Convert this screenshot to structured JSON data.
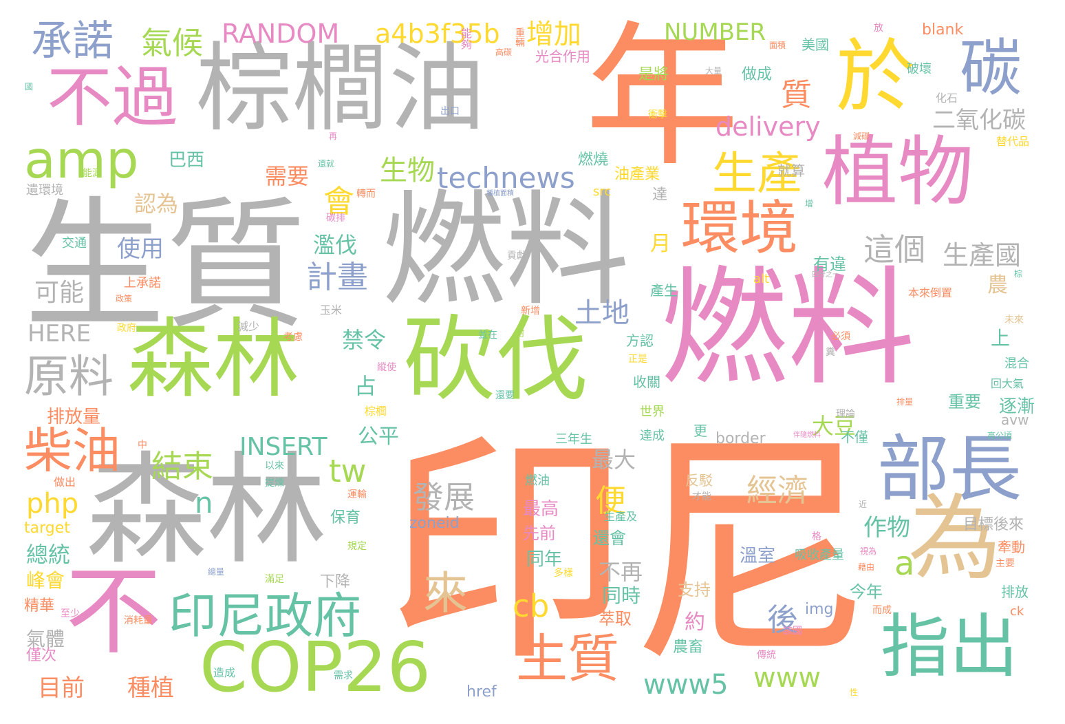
{
  "palette": {
    "orange": "#fc8d62",
    "gray": "#b3b3b3",
    "pink": "#e78ac3",
    "green": "#a6d854",
    "teal": "#66c2a5",
    "blue": "#8da0cb",
    "yellow": "#ffd92f",
    "tan": "#e5c494"
  },
  "words": [
    {
      "text": "印尼",
      "color": "orange"
    },
    {
      "text": "生質",
      "color": "gray"
    },
    {
      "text": "燃料",
      "color": "gray"
    },
    {
      "text": "燃料",
      "color": "pink"
    },
    {
      "text": "棕櫚油",
      "color": "gray"
    },
    {
      "text": "年",
      "color": "orange"
    },
    {
      "text": "森林",
      "color": "gray"
    },
    {
      "text": "森林",
      "color": "green"
    },
    {
      "text": "砍伐",
      "color": "green"
    },
    {
      "text": "植物",
      "color": "pink"
    },
    {
      "text": "於",
      "color": "yellow"
    },
    {
      "text": "為",
      "color": "tan"
    },
    {
      "text": "不過",
      "color": "pink"
    },
    {
      "text": "不",
      "color": "pink"
    },
    {
      "text": "部長",
      "color": "blue"
    },
    {
      "text": "指出",
      "color": "teal"
    },
    {
      "text": "COP26",
      "color": "green"
    },
    {
      "text": "碳",
      "color": "blue"
    },
    {
      "text": "amp",
      "color": "green"
    },
    {
      "text": "環境",
      "color": "orange"
    },
    {
      "text": "印尼政府",
      "color": "teal"
    },
    {
      "text": "生質",
      "color": "orange"
    },
    {
      "text": "柴油",
      "color": "orange"
    },
    {
      "text": "原料",
      "color": "gray"
    },
    {
      "text": "承諾",
      "color": "blue"
    },
    {
      "text": "生產",
      "color": "yellow"
    },
    {
      "text": "來",
      "color": "tan"
    },
    {
      "text": "technews",
      "color": "blue"
    },
    {
      "text": "RANDOM",
      "color": "pink"
    },
    {
      "text": "a4b3f35b",
      "color": "yellow"
    },
    {
      "text": "氣候",
      "color": "green"
    },
    {
      "text": "增加",
      "color": "yellow"
    },
    {
      "text": "NUMBER",
      "color": "green"
    },
    {
      "text": "質",
      "color": "orange"
    },
    {
      "text": "delivery",
      "color": "pink"
    },
    {
      "text": "二氧化碳",
      "color": "gray"
    },
    {
      "text": "經濟",
      "color": "tan"
    },
    {
      "text": "發展",
      "color": "gray"
    },
    {
      "text": "這個",
      "color": "gray"
    },
    {
      "text": "生產國",
      "color": "gray"
    },
    {
      "text": "結束",
      "color": "green"
    },
    {
      "text": "計畫",
      "color": "blue"
    },
    {
      "text": "INSERT",
      "color": "teal"
    },
    {
      "text": "www5",
      "color": "teal"
    },
    {
      "text": "www",
      "color": "green"
    },
    {
      "text": "php",
      "color": "yellow"
    },
    {
      "text": "tw",
      "color": "green"
    },
    {
      "text": "a",
      "color": "green"
    },
    {
      "text": "n",
      "color": "teal"
    },
    {
      "text": "cb",
      "color": "yellow"
    },
    {
      "text": "後",
      "color": "blue"
    },
    {
      "text": "便",
      "color": "yellow"
    },
    {
      "text": "會",
      "color": "yellow"
    },
    {
      "text": "生物",
      "color": "green"
    },
    {
      "text": "土地",
      "color": "blue"
    },
    {
      "text": "使用",
      "color": "blue"
    },
    {
      "text": "可能",
      "color": "gray"
    },
    {
      "text": "HERE",
      "color": "gray"
    },
    {
      "text": "巴西",
      "color": "teal"
    },
    {
      "text": "認為",
      "color": "tan"
    },
    {
      "text": "需要",
      "color": "orange"
    },
    {
      "text": "濫伐",
      "color": "teal"
    },
    {
      "text": "禁令",
      "color": "teal"
    },
    {
      "text": "占",
      "color": "teal"
    },
    {
      "text": "公平",
      "color": "teal"
    },
    {
      "text": "大豆",
      "color": "green"
    },
    {
      "text": "最大",
      "color": "gray"
    },
    {
      "text": "總統",
      "color": "teal"
    },
    {
      "text": "峰會",
      "color": "yellow"
    },
    {
      "text": "目前",
      "color": "orange"
    },
    {
      "text": "種植",
      "color": "orange"
    },
    {
      "text": "作物",
      "color": "teal"
    },
    {
      "text": "不再",
      "color": "gray"
    },
    {
      "text": "同時",
      "color": "teal"
    },
    {
      "text": "溫室",
      "color": "blue"
    },
    {
      "text": "約",
      "color": "pink"
    },
    {
      "text": "月",
      "color": "yellow"
    },
    {
      "text": "有違",
      "color": "teal"
    },
    {
      "text": "農",
      "color": "tan"
    },
    {
      "text": "上",
      "color": "teal"
    },
    {
      "text": "逐漸",
      "color": "teal"
    },
    {
      "text": "重要",
      "color": "teal"
    },
    {
      "text": "今年",
      "color": "teal"
    },
    {
      "text": "排放量",
      "color": "orange"
    },
    {
      "text": "燃燒",
      "color": "teal"
    },
    {
      "text": "做成",
      "color": "teal"
    },
    {
      "text": "是將",
      "color": "green"
    },
    {
      "text": "美國",
      "color": "teal"
    },
    {
      "text": "blank",
      "color": "orange"
    },
    {
      "text": "光合作用",
      "color": "pink"
    },
    {
      "text": "能夠",
      "color": "pink"
    },
    {
      "text": "油產業",
      "color": "yellow"
    },
    {
      "text": "src",
      "color": "yellow"
    },
    {
      "text": "達",
      "color": "gray"
    },
    {
      "text": "就算",
      "color": "gray"
    },
    {
      "text": "alt",
      "color": "yellow"
    },
    {
      "text": "產生",
      "color": "teal"
    },
    {
      "text": "方認",
      "color": "teal"
    },
    {
      "text": "收關",
      "color": "teal"
    },
    {
      "text": "世界",
      "color": "green"
    },
    {
      "text": "達成",
      "color": "teal"
    },
    {
      "text": "不僅",
      "color": "teal"
    },
    {
      "text": "border",
      "color": "gray"
    },
    {
      "text": "更",
      "color": "teal"
    },
    {
      "text": "反駁",
      "color": "tan"
    },
    {
      "text": "最高",
      "color": "pink"
    },
    {
      "text": "先前",
      "color": "pink"
    },
    {
      "text": "同年",
      "color": "teal"
    },
    {
      "text": "還會",
      "color": "teal"
    },
    {
      "text": "萃取",
      "color": "orange"
    },
    {
      "text": "支持",
      "color": "tan"
    },
    {
      "text": "吸收產量",
      "color": "teal"
    },
    {
      "text": "zoneid",
      "color": "blue"
    },
    {
      "text": "target",
      "color": "yellow"
    },
    {
      "text": "保育",
      "color": "teal"
    },
    {
      "text": "下降",
      "color": "gray"
    },
    {
      "text": "img",
      "color": "blue"
    },
    {
      "text": "氣體",
      "color": "gray"
    },
    {
      "text": "精華",
      "color": "orange"
    },
    {
      "text": "僅次",
      "color": "pink"
    },
    {
      "text": "href",
      "color": "blue"
    },
    {
      "text": "農畜",
      "color": "teal"
    },
    {
      "text": "目標後來",
      "color": "gray"
    },
    {
      "text": "牽動",
      "color": "orange"
    },
    {
      "text": "排放",
      "color": "teal"
    },
    {
      "text": "ck",
      "color": "orange"
    },
    {
      "text": "avw",
      "color": "gray"
    },
    {
      "text": "混合",
      "color": "teal"
    },
    {
      "text": "回大氣",
      "color": "teal"
    },
    {
      "text": "替代品",
      "color": "yellow"
    },
    {
      "text": "化石",
      "color": "gray"
    },
    {
      "text": "破壞",
      "color": "teal"
    },
    {
      "text": "本來倒置",
      "color": "orange"
    },
    {
      "text": "遺環境",
      "color": "gray"
    },
    {
      "text": "交通",
      "color": "teal"
    },
    {
      "text": "上承諾",
      "color": "orange"
    },
    {
      "text": "玉米",
      "color": "gray"
    },
    {
      "text": "減少",
      "color": "gray"
    },
    {
      "text": "政府",
      "color": "yellow"
    },
    {
      "text": "考慮",
      "color": "orange"
    },
    {
      "text": "以來",
      "color": "teal"
    },
    {
      "text": "提煉",
      "color": "teal"
    },
    {
      "text": "做出",
      "color": "orange"
    },
    {
      "text": "運輸",
      "color": "orange"
    },
    {
      "text": "規定",
      "color": "green"
    },
    {
      "text": "滿足",
      "color": "green"
    },
    {
      "text": "至少",
      "color": "pink"
    },
    {
      "text": "消耗量",
      "color": "orange"
    },
    {
      "text": "造成",
      "color": "teal"
    },
    {
      "text": "需求",
      "color": "teal"
    },
    {
      "text": "三年生",
      "color": "teal"
    },
    {
      "text": "燃油",
      "color": "teal"
    },
    {
      "text": "生產及",
      "color": "teal"
    },
    {
      "text": "傳統",
      "color": "pink"
    },
    {
      "text": "重輛",
      "color": "orange"
    },
    {
      "text": "高碳",
      "color": "orange"
    },
    {
      "text": "出口",
      "color": "blue"
    },
    {
      "text": "面積",
      "color": "orange"
    },
    {
      "text": "大量",
      "color": "gray"
    },
    {
      "text": "衝擊",
      "color": "yellow"
    },
    {
      "text": "轉而",
      "color": "orange"
    },
    {
      "text": "碳排",
      "color": "pink"
    },
    {
      "text": "貢獻",
      "color": "gray"
    },
    {
      "text": "新增",
      "color": "orange"
    },
    {
      "text": "並在",
      "color": "teal"
    },
    {
      "text": "樹",
      "color": "green"
    },
    {
      "text": "縱使",
      "color": "pink"
    },
    {
      "text": "還要",
      "color": "teal"
    },
    {
      "text": "棕櫚",
      "color": "yellow"
    },
    {
      "text": "中",
      "color": "orange"
    },
    {
      "text": "總量",
      "color": "blue"
    },
    {
      "text": "多樣",
      "color": "yellow"
    },
    {
      "text": "才能",
      "color": "gray"
    },
    {
      "text": "必須",
      "color": "orange"
    },
    {
      "text": "糞",
      "color": "gray"
    },
    {
      "text": "理論",
      "color": "gray"
    },
    {
      "text": "未來",
      "color": "tan"
    },
    {
      "text": "主要",
      "color": "orange"
    },
    {
      "text": "該國",
      "color": "pink"
    },
    {
      "text": "而成",
      "color": "orange"
    },
    {
      "text": "藉由",
      "color": "orange"
    },
    {
      "text": "能源",
      "color": "green"
    },
    {
      "text": "政策",
      "color": "orange"
    },
    {
      "text": "國",
      "color": "teal"
    },
    {
      "text": "再",
      "color": "pink"
    },
    {
      "text": "放",
      "color": "pink"
    },
    {
      "text": "減碳",
      "color": "orange"
    },
    {
      "text": "增",
      "color": "teal"
    },
    {
      "text": "近",
      "color": "gray"
    },
    {
      "text": "棕",
      "color": "teal"
    },
    {
      "text": "格",
      "color": "pink"
    },
    {
      "text": "性",
      "color": "yellow"
    },
    {
      "text": "四分之一",
      "color": "gray"
    },
    {
      "text": "高公頃",
      "color": "teal"
    },
    {
      "text": "視為",
      "color": "pink"
    },
    {
      "text": "還就",
      "color": "teal"
    },
    {
      "text": "種植面積",
      "color": "blue"
    },
    {
      "text": "排量",
      "color": "orange"
    },
    {
      "text": "正是",
      "color": "yellow"
    },
    {
      "text": "伴隨燃料",
      "color": "pink"
    }
  ]
}
